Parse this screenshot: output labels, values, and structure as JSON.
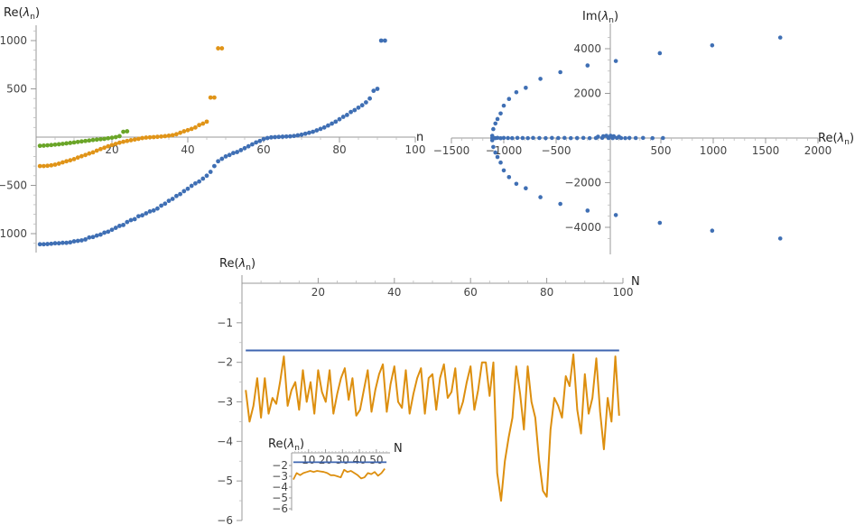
{
  "colors": {
    "blue": "#3f6fb4",
    "orange": "#e09418",
    "green": "#6aa528",
    "line_blue": "#3e65b0",
    "line_orange": "#dd8f0f"
  },
  "chart_data": [
    {
      "id": "top-left",
      "type": "scatter",
      "xlabel": "n",
      "ylabel": "Re(λn)",
      "xlim": [
        0,
        100
      ],
      "ylim": [
        -1150,
        1150
      ],
      "xticks": [
        20,
        40,
        60,
        80,
        100
      ],
      "yticks": [
        -1000,
        -500,
        500,
        1000
      ],
      "series": [
        {
          "color_key": "green",
          "x": [
            1,
            2,
            3,
            4,
            5,
            6,
            7,
            8,
            9,
            10,
            11,
            12,
            13,
            14,
            15,
            16,
            17,
            18,
            19,
            20,
            21,
            22,
            23,
            24
          ],
          "y": [
            -90,
            -88,
            -85,
            -82,
            -78,
            -74,
            -70,
            -65,
            -60,
            -55,
            -50,
            -45,
            -40,
            -35,
            -30,
            -26,
            -22,
            -18,
            -12,
            -6,
            0,
            10,
            55,
            60
          ]
        },
        {
          "color_key": "orange",
          "x": [
            1,
            2,
            3,
            4,
            5,
            6,
            7,
            8,
            9,
            10,
            11,
            12,
            13,
            14,
            15,
            16,
            17,
            18,
            19,
            20,
            21,
            22,
            23,
            24,
            25,
            26,
            27,
            28,
            29,
            30,
            31,
            32,
            33,
            34,
            35,
            36,
            37,
            38,
            39,
            40,
            41,
            42,
            43,
            44,
            45,
            46,
            47,
            48,
            49
          ],
          "y": [
            -300,
            -300,
            -297,
            -292,
            -285,
            -275,
            -262,
            -250,
            -240,
            -228,
            -212,
            -198,
            -185,
            -170,
            -158,
            -140,
            -124,
            -110,
            -95,
            -82,
            -70,
            -58,
            -48,
            -40,
            -32,
            -25,
            -18,
            -10,
            -5,
            -2,
            0,
            3,
            6,
            10,
            15,
            20,
            30,
            45,
            60,
            72,
            85,
            100,
            125,
            140,
            160,
            410,
            410,
            920,
            920
          ]
        },
        {
          "color_key": "blue",
          "x": [
            1,
            2,
            3,
            4,
            5,
            6,
            7,
            8,
            9,
            10,
            11,
            12,
            13,
            14,
            15,
            16,
            17,
            18,
            19,
            20,
            21,
            22,
            23,
            24,
            25,
            26,
            27,
            28,
            29,
            30,
            31,
            32,
            33,
            34,
            35,
            36,
            37,
            38,
            39,
            40,
            41,
            42,
            43,
            44,
            45,
            46,
            47,
            48,
            49,
            50,
            51,
            52,
            53,
            54,
            55,
            56,
            57,
            58,
            59,
            60,
            61,
            62,
            63,
            64,
            65,
            66,
            67,
            68,
            69,
            70,
            71,
            72,
            73,
            74,
            75,
            76,
            77,
            78,
            79,
            80,
            81,
            82,
            83,
            84,
            85,
            86,
            87,
            88,
            89,
            90,
            91,
            92
          ],
          "y": [
            -1110,
            -1110,
            -1108,
            -1105,
            -1100,
            -1100,
            -1095,
            -1095,
            -1090,
            -1080,
            -1075,
            -1070,
            -1060,
            -1040,
            -1035,
            -1020,
            -1010,
            -990,
            -980,
            -960,
            -940,
            -920,
            -910,
            -880,
            -860,
            -850,
            -820,
            -810,
            -790,
            -770,
            -760,
            -740,
            -710,
            -690,
            -660,
            -640,
            -610,
            -590,
            -560,
            -535,
            -505,
            -480,
            -460,
            -430,
            -400,
            -360,
            -300,
            -250,
            -225,
            -200,
            -185,
            -165,
            -155,
            -135,
            -115,
            -95,
            -75,
            -55,
            -40,
            -20,
            -10,
            -3,
            0,
            2,
            4,
            6,
            8,
            12,
            18,
            25,
            35,
            45,
            55,
            70,
            85,
            100,
            120,
            140,
            160,
            185,
            210,
            230,
            260,
            280,
            305,
            330,
            360,
            400,
            480,
            500,
            1000,
            1000
          ]
        }
      ]
    },
    {
      "id": "top-right",
      "type": "scatter",
      "xlabel": "Re(λn)",
      "ylabel": "Im(λn)",
      "xlim": [
        -1500,
        2000
      ],
      "ylim": [
        -4800,
        4800
      ],
      "xticks": [
        -1500,
        -1000,
        -500,
        500,
        1000,
        1500,
        2000
      ],
      "yticks": [
        -4000,
        -2000,
        2000,
        4000
      ],
      "series": [
        {
          "color_key": "blue",
          "x": [
            -1110,
            -1100,
            -1080,
            -1060,
            -1030,
            -1000,
            -950,
            -880,
            -790,
            -650,
            -460,
            -200,
            -1110,
            -1100,
            -1080,
            -1060,
            -1030,
            -1000,
            -950,
            -880,
            -790,
            -650,
            -460,
            -200,
            -1110,
            -1100,
            -1080,
            -1060,
            -1030,
            -1000,
            -960,
            -920,
            -870,
            -820,
            -770,
            -720,
            -660,
            -600,
            -540,
            -480,
            -420,
            -360,
            -300,
            -240,
            -180,
            -120,
            -60,
            0,
            40,
            80,
            120,
            160,
            200,
            260,
            330,
            420,
            520,
            -100,
            -50,
            -20,
            20,
            50,
            100,
            70,
            490,
            990,
            1640,
            70,
            490,
            990,
            1640
          ],
          "y": [
            100,
            400,
            650,
            850,
            1100,
            1450,
            1750,
            2050,
            2250,
            2650,
            2950,
            3250,
            -100,
            -400,
            -650,
            -850,
            -1100,
            -1450,
            -1750,
            -2050,
            -2250,
            -2650,
            -2950,
            -3250,
            0,
            5,
            -5,
            10,
            -10,
            5,
            0,
            -5,
            5,
            0,
            -5,
            5,
            0,
            -5,
            5,
            0,
            5,
            -5,
            0,
            5,
            -5,
            0,
            5,
            0,
            -5,
            5,
            0,
            -5,
            5,
            0,
            5,
            -5,
            0,
            60,
            80,
            100,
            100,
            80,
            60,
            3450,
            3800,
            4150,
            4500,
            -3450,
            -3800,
            -4150,
            -4500
          ]
        }
      ]
    },
    {
      "id": "bottom",
      "type": "line",
      "xlabel": "N",
      "ylabel": "Re(λn)",
      "xlim": [
        0,
        100
      ],
      "ylim": [
        -6,
        0
      ],
      "xticks": [
        20,
        40,
        60,
        80,
        100
      ],
      "yticks": [
        -1,
        -2,
        -3,
        -4,
        -5,
        -6
      ],
      "series": [
        {
          "color_key": "line_blue",
          "x": [
            1,
            99
          ],
          "y": [
            -1.7,
            -1.7
          ]
        },
        {
          "color_key": "line_orange",
          "x": [
            1,
            2,
            3,
            4,
            5,
            6,
            7,
            8,
            9,
            10,
            11,
            12,
            13,
            14,
            15,
            16,
            17,
            18,
            19,
            20,
            21,
            22,
            23,
            24,
            25,
            26,
            27,
            28,
            29,
            30,
            31,
            32,
            33,
            34,
            35,
            36,
            37,
            38,
            39,
            40,
            41,
            42,
            43,
            44,
            45,
            46,
            47,
            48,
            49,
            50,
            51,
            52,
            53,
            54,
            55,
            56,
            57,
            58,
            59,
            60,
            61,
            62,
            63,
            64,
            65,
            66,
            67,
            68,
            69,
            70,
            71,
            72,
            73,
            74,
            75,
            76,
            77,
            78,
            79,
            80,
            81,
            82,
            83,
            84,
            85,
            86,
            87,
            88,
            89,
            90,
            91,
            92,
            93,
            94,
            95,
            96,
            97,
            98,
            99
          ],
          "y": [
            -2.7,
            -3.5,
            -3.1,
            -2.4,
            -3.4,
            -2.4,
            -3.3,
            -2.9,
            -3.05,
            -2.5,
            -1.85,
            -3.1,
            -2.7,
            -2.5,
            -3.2,
            -2.2,
            -3.0,
            -2.5,
            -3.3,
            -2.2,
            -2.75,
            -3.0,
            -2.2,
            -3.3,
            -2.8,
            -2.4,
            -2.15,
            -2.95,
            -2.4,
            -3.35,
            -3.2,
            -2.7,
            -2.2,
            -3.25,
            -2.7,
            -2.3,
            -2.05,
            -3.25,
            -2.55,
            -2.1,
            -3.0,
            -3.15,
            -2.2,
            -3.3,
            -2.8,
            -2.4,
            -2.15,
            -3.3,
            -2.4,
            -2.3,
            -3.2,
            -2.4,
            -2.05,
            -2.9,
            -2.75,
            -2.15,
            -3.3,
            -3.0,
            -2.5,
            -2.1,
            -3.2,
            -2.7,
            -2.0,
            -2.0,
            -2.85,
            -2.0,
            -4.8,
            -5.5,
            -4.5,
            -3.9,
            -3.4,
            -2.1,
            -2.8,
            -3.7,
            -2.1,
            -3.0,
            -3.4,
            -4.5,
            -5.25,
            -5.4,
            -3.7,
            -2.9,
            -3.1,
            -3.4,
            -2.35,
            -2.6,
            -1.8,
            -3.2,
            -3.8,
            -2.3,
            -3.3,
            -2.9,
            -1.9,
            -3.25,
            -4.2,
            -2.9,
            -3.5,
            -1.85,
            -3.35
          ]
        }
      ]
    },
    {
      "id": "inset",
      "type": "line",
      "xlabel": "N",
      "ylabel": "Re(λn)",
      "xlim": [
        0,
        57
      ],
      "ylim": [
        -6,
        0
      ],
      "xticks": [
        10,
        20,
        30,
        40,
        50
      ],
      "yticks": [
        -2,
        -3,
        -4,
        -5,
        -6
      ],
      "series": [
        {
          "color_key": "line_blue",
          "x": [
            1,
            56
          ],
          "y": [
            -1.7,
            -1.7
          ]
        },
        {
          "color_key": "line_orange",
          "x": [
            1,
            3,
            5,
            7,
            9,
            11,
            13,
            15,
            17,
            19,
            21,
            23,
            25,
            27,
            29,
            31,
            33,
            35,
            37,
            39,
            41,
            43,
            45,
            47,
            49,
            51,
            53,
            55
          ],
          "y": [
            -3.3,
            -2.7,
            -2.9,
            -2.7,
            -2.6,
            -2.5,
            -2.6,
            -2.5,
            -2.55,
            -2.6,
            -2.7,
            -2.9,
            -2.9,
            -3.0,
            -3.1,
            -2.4,
            -2.6,
            -2.5,
            -2.7,
            -2.9,
            -3.2,
            -3.1,
            -2.7,
            -2.8,
            -2.6,
            -2.95,
            -2.7,
            -2.3
          ]
        }
      ]
    }
  ]
}
